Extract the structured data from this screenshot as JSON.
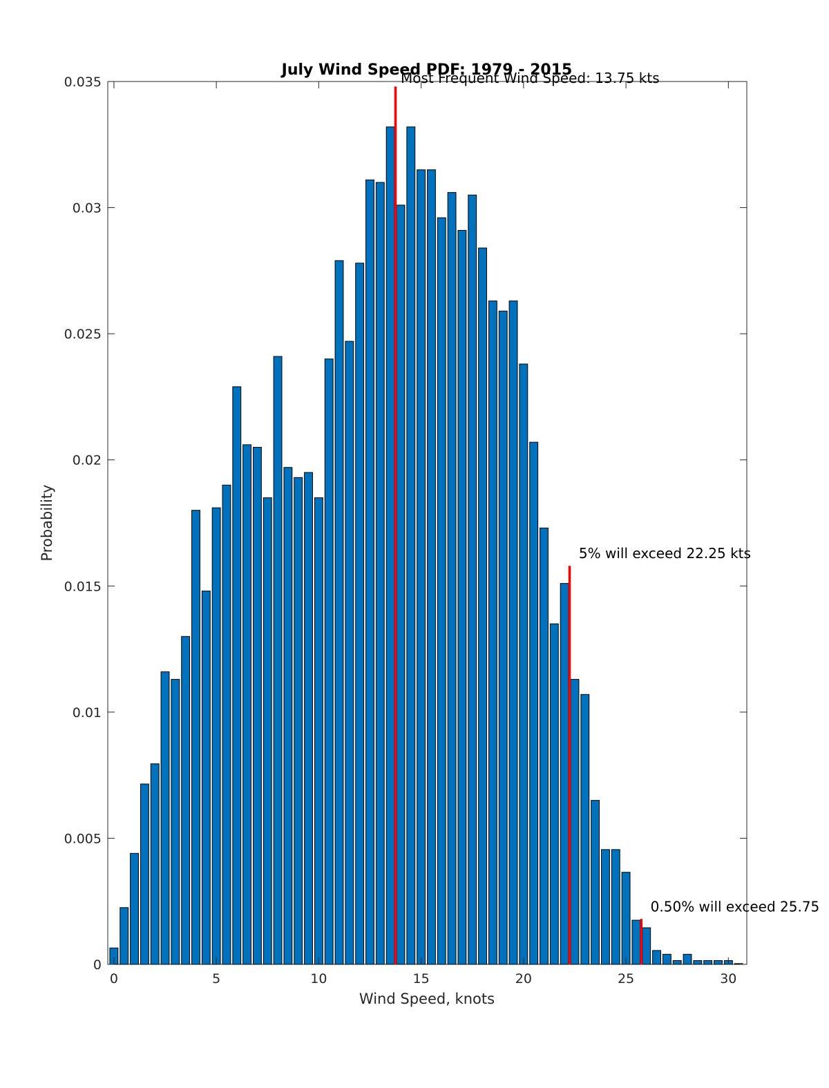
{
  "chart_data": {
    "type": "bar",
    "title": "July Wind Speed PDF: 1979 - 2015",
    "xlabel": "Wind Speed, knots",
    "ylabel": "Probability",
    "xlim": [
      -0.3,
      30.9
    ],
    "ylim": [
      0,
      0.035
    ],
    "xticks": [
      0,
      5,
      10,
      15,
      20,
      25,
      30
    ],
    "yticks": [
      0,
      0.005,
      0.01,
      0.015,
      0.02,
      0.025,
      0.03,
      0.035
    ],
    "ytick_labels": [
      "0",
      "0.005",
      "0.01",
      "0.015",
      "0.02",
      "0.025",
      "0.03",
      "0.035"
    ],
    "bar_width": 0.4,
    "x": [
      0,
      0.5,
      1,
      1.5,
      2,
      2.5,
      3,
      3.5,
      4,
      4.5,
      5,
      5.5,
      6,
      6.5,
      7,
      7.5,
      8,
      8.5,
      9,
      9.5,
      10,
      10.5,
      11,
      11.5,
      12,
      12.5,
      13,
      13.5,
      14,
      14.5,
      15,
      15.5,
      16,
      16.5,
      17,
      17.5,
      18,
      18.5,
      19,
      19.5,
      20,
      20.5,
      21,
      21.5,
      22,
      22.5,
      23,
      23.5,
      24,
      24.5,
      25,
      25.5,
      26,
      26.5,
      27,
      27.5,
      28,
      28.5,
      29,
      29.5,
      30,
      30.5
    ],
    "values": [
      0.00065,
      0.00225,
      0.0044,
      0.00715,
      0.00795,
      0.0116,
      0.0113,
      0.013,
      0.018,
      0.0148,
      0.0181,
      0.019,
      0.0229,
      0.0206,
      0.0205,
      0.0185,
      0.0241,
      0.0197,
      0.0193,
      0.0195,
      0.0185,
      0.024,
      0.0279,
      0.0247,
      0.0278,
      0.0311,
      0.031,
      0.0332,
      0.0301,
      0.0332,
      0.0315,
      0.0315,
      0.0296,
      0.0306,
      0.0291,
      0.0305,
      0.0284,
      0.0263,
      0.0259,
      0.0263,
      0.0238,
      0.0207,
      0.0173,
      0.0135,
      0.0151,
      0.0113,
      0.0107,
      0.0065,
      0.00455,
      0.00455,
      0.00365,
      0.00175,
      0.00145,
      0.00055,
      0.0004,
      0.00015,
      0.0004,
      0.00015,
      0.00015,
      0.00015,
      0.00015,
      3e-05
    ],
    "reference_lines": [
      {
        "x": 13.75,
        "y_top": 0.0348,
        "label": "Most Frequent Wind Speed: 13.75 kts",
        "label_x": 14.0,
        "label_y": 0.03495
      },
      {
        "x": 22.25,
        "y_top": 0.0158,
        "label": "5% will exceed 22.25 kts",
        "label_x": 22.7,
        "label_y": 0.0161
      },
      {
        "x": 25.75,
        "y_top": 0.0018,
        "label": "0.50% will exceed 25.75",
        "label_x": 26.2,
        "label_y": 0.0021
      }
    ],
    "colors": {
      "bar": "#0072bd",
      "reference": "#ff0000"
    }
  }
}
